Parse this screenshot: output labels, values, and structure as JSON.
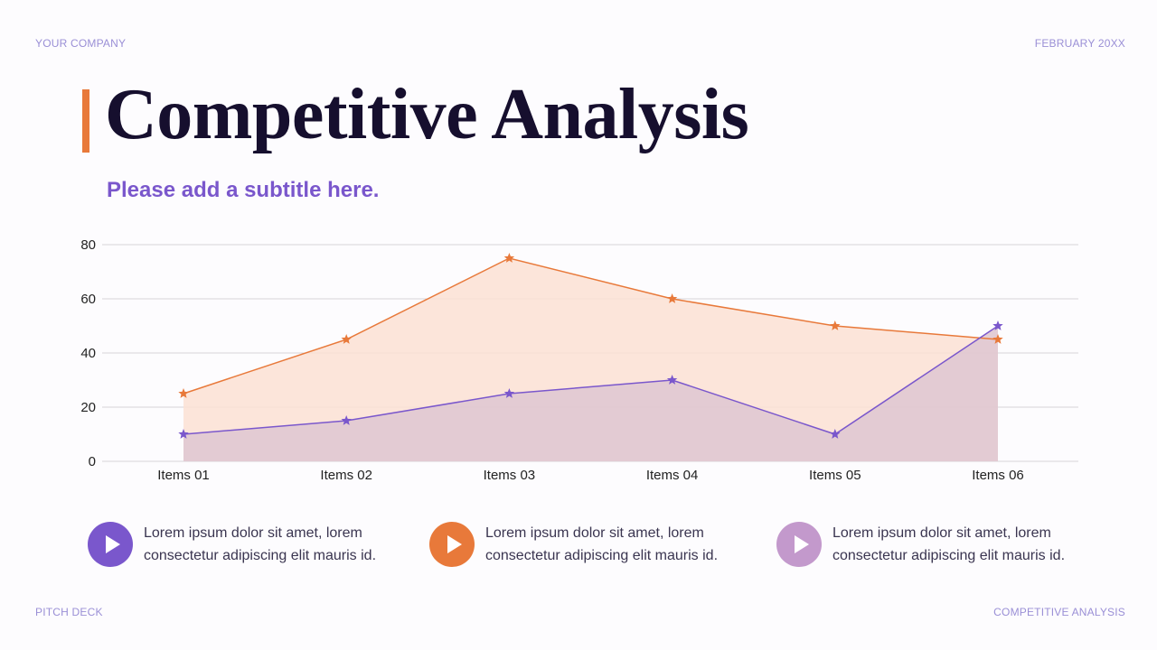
{
  "header": {
    "company": "YOUR COMPANY",
    "date": "FEBRUARY 20XX"
  },
  "title": "Competitive Analysis",
  "subtitle": "Please add a subtitle here.",
  "footer": {
    "left": "PITCH DECK",
    "right": "COMPETITIVE ANALYSIS"
  },
  "chart_data": {
    "type": "area",
    "categories": [
      "Items 01",
      "Items 02",
      "Items 03",
      "Items 04",
      "Items 05",
      "Items 06"
    ],
    "ylim": [
      0,
      80
    ],
    "yticks": [
      0,
      20,
      40,
      60,
      80
    ],
    "grid": true,
    "marker": "star",
    "series": [
      {
        "values": [
          25,
          45,
          75,
          60,
          50,
          45
        ],
        "color": "#e8793a",
        "fill": "#fbe1d4"
      },
      {
        "values": [
          10,
          15,
          25,
          30,
          10,
          50
        ],
        "color": "#7a57cc",
        "fill": "#e0c8d2"
      }
    ]
  },
  "items": [
    {
      "text1": "Lorem ipsum dolor sit amet, lorem",
      "text2": "consectetur adipiscing elit  mauris id.",
      "color": "#7a57cc",
      "icon": "play-icon"
    },
    {
      "text1": "Lorem ipsum dolor sit amet, lorem",
      "text2": "consectetur adipiscing elit  mauris id.",
      "color": "#e8793a",
      "icon": "play-icon"
    },
    {
      "text1": "Lorem ipsum dolor sit amet, lorem",
      "text2": "consectetur adipiscing elit  mauris id.",
      "color": "#c399cc",
      "icon": "play-icon"
    }
  ]
}
